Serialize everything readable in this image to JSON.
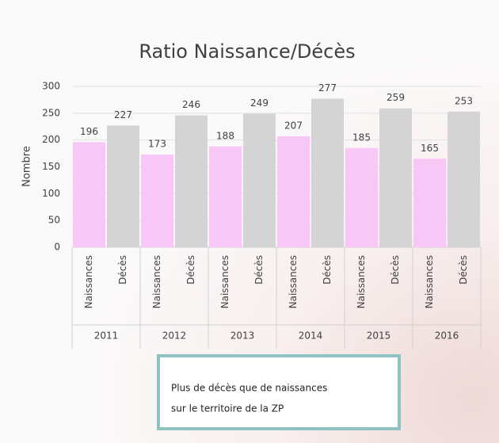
{
  "chart_data": {
    "type": "bar",
    "title": "Ratio Naissance/Décès",
    "y_label": "Nombre",
    "categories": [
      "2011",
      "2012",
      "2013",
      "2014",
      "2015",
      "2016"
    ],
    "series": [
      {
        "name": "Naissances",
        "color": "#f7c8f6",
        "values": [
          196,
          173,
          188,
          207,
          185,
          165
        ]
      },
      {
        "name": "Décès",
        "color": "#d4d4d4",
        "values": [
          227,
          246,
          249,
          277,
          259,
          253
        ]
      }
    ],
    "ylim": [
      0,
      300
    ],
    "yticks": [
      0,
      50,
      100,
      150,
      200,
      250,
      300
    ],
    "grid": true,
    "annotation": [
      "Plus de décès que de naissances",
      "sur le territoire de la ZP"
    ]
  }
}
